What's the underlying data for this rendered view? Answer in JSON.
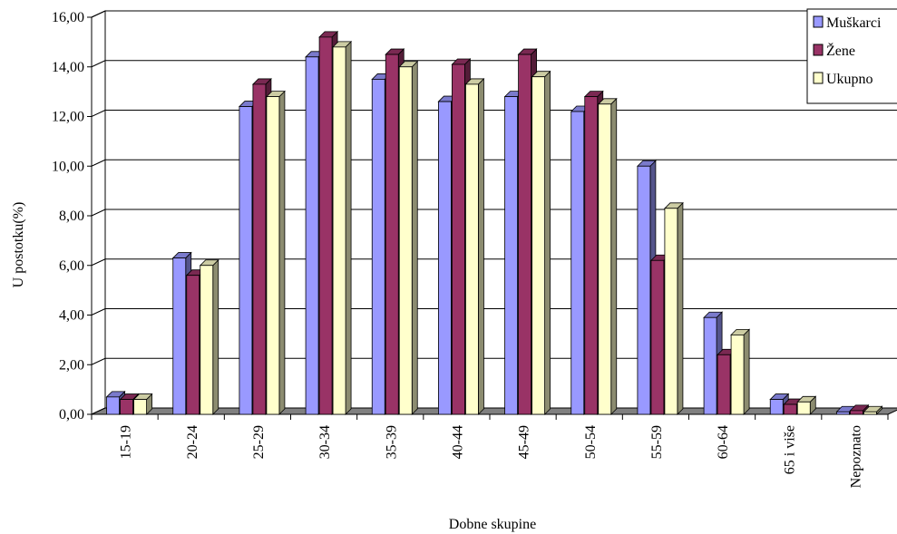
{
  "chart_data": {
    "type": "bar",
    "title": "",
    "xlabel": "Dobne skupine",
    "ylabel": "U postotku(%)",
    "ylim": [
      0,
      16
    ],
    "yticks": [
      "0,00",
      "2,00",
      "4,00",
      "6,00",
      "8,00",
      "10,00",
      "12,00",
      "14,00",
      "16,00"
    ],
    "grid": true,
    "legend_position": "top-right",
    "categories": [
      "15-19",
      "20-24",
      "25-29",
      "30-34",
      "35-39",
      "40-44",
      "45-49",
      "50-54",
      "55-59",
      "60-64",
      "65 i više",
      "Nepoznato"
    ],
    "series": [
      {
        "name": "Muškarci",
        "color": "#9999FF",
        "values": [
          0.7,
          6.3,
          12.4,
          14.4,
          13.5,
          12.6,
          12.8,
          12.2,
          10.0,
          3.9,
          0.6,
          0.1
        ]
      },
      {
        "name": "Žene",
        "color": "#993366",
        "values": [
          0.6,
          5.6,
          13.3,
          15.2,
          14.5,
          14.1,
          14.5,
          12.8,
          6.2,
          2.4,
          0.4,
          0.15
        ]
      },
      {
        "name": "Ukupno",
        "color": "#FFFFCC",
        "values": [
          0.6,
          6.0,
          12.8,
          14.8,
          14.0,
          13.3,
          13.6,
          12.5,
          8.3,
          3.2,
          0.5,
          0.1
        ]
      }
    ]
  }
}
